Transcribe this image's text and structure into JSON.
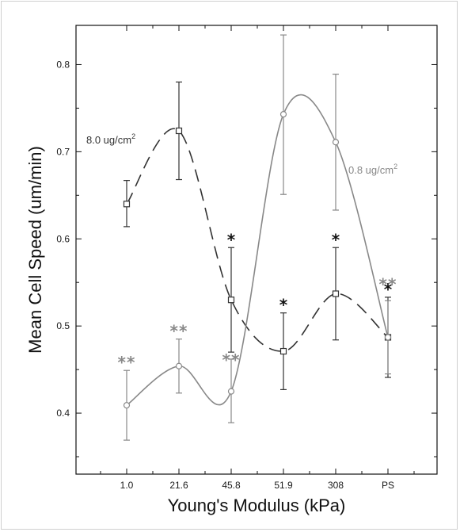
{
  "chart_data": {
    "type": "line",
    "xlabel": "Young's Modulus (kPa)",
    "ylabel": "Mean Cell Speed (um/min)",
    "categories": [
      "1.0",
      "21.6",
      "45.8",
      "51.9",
      "308",
      "PS"
    ],
    "ylim": [
      0.33,
      0.845
    ],
    "yticks": [
      "0.4",
      "0.5",
      "0.6",
      "0.7",
      "0.8"
    ],
    "grid": false,
    "series": [
      {
        "name": "8.0 ug/cm",
        "name_sup": "2",
        "marker": "square",
        "line_style": "dashed",
        "color": "#333333",
        "values": [
          0.64,
          0.724,
          0.53,
          0.471,
          0.537,
          0.487
        ],
        "err_low": [
          0.614,
          0.668,
          0.47,
          0.427,
          0.484,
          0.441
        ],
        "err_high": [
          0.667,
          0.78,
          0.59,
          0.515,
          0.59,
          0.533
        ],
        "stars": [
          "",
          "",
          "*",
          "*",
          "*",
          "*"
        ]
      },
      {
        "name": "0.8 ug/cm",
        "name_sup": "2",
        "marker": "circle",
        "line_style": "solid",
        "color": "#888888",
        "values": [
          0.409,
          0.454,
          0.425,
          0.743,
          0.711,
          0.487
        ],
        "err_low": [
          0.369,
          0.423,
          0.389,
          0.651,
          0.633,
          0.445
        ],
        "err_high": [
          0.449,
          0.485,
          0.462,
          0.834,
          0.789,
          0.529
        ],
        "stars": [
          "**",
          "**",
          "**",
          "",
          "",
          "**"
        ]
      }
    ]
  }
}
